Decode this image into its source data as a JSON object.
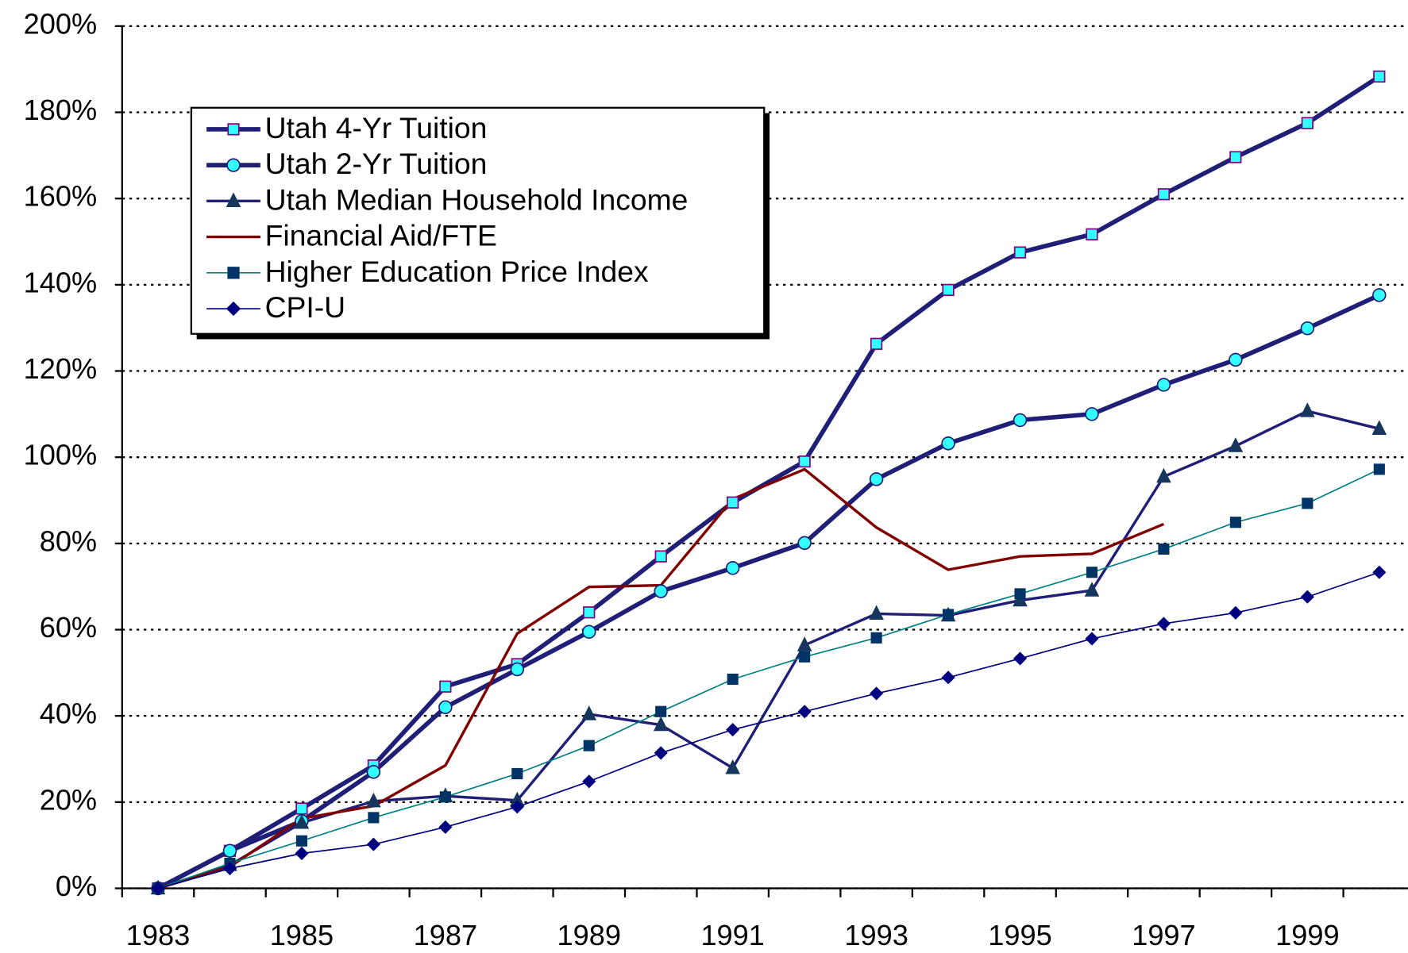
{
  "chart_data": {
    "type": "line",
    "categories": [
      "1983",
      null,
      "1985",
      null,
      "1987",
      null,
      "1989",
      null,
      "1991",
      null,
      "1993",
      null,
      "1995",
      null,
      "1997",
      null,
      "1999",
      null
    ],
    "ylim": [
      0,
      200
    ],
    "yticks": [
      {
        "value": 0,
        "label": "0%"
      },
      {
        "value": 20,
        "label": "20%"
      },
      {
        "value": 40,
        "label": "40%"
      },
      {
        "value": 60,
        "label": "60%"
      },
      {
        "value": 80,
        "label": "80%"
      },
      {
        "value": 100,
        "label": "100%"
      },
      {
        "value": 120,
        "label": "120%"
      },
      {
        "value": 140,
        "label": "140%"
      },
      {
        "value": 160,
        "label": "160%"
      },
      {
        "value": 180,
        "label": "180%"
      },
      {
        "value": 200,
        "label": "200%"
      }
    ],
    "grid": true,
    "legend": "upper left",
    "series": [
      {
        "name": "Utah 4-Yr Tuition",
        "color": "#1f1f78",
        "marker": "square",
        "marker_fill": "#33ffff",
        "marker_stroke": "#800080",
        "line_width": 5,
        "values": [
          0,
          8.7,
          18.5,
          28.5,
          46.8,
          52,
          64,
          77,
          89.5,
          99,
          126.3,
          138.8,
          147.5,
          151.7,
          161,
          169.6,
          177.5,
          188.3
        ]
      },
      {
        "name": "Utah 2-Yr Tuition",
        "color": "#1f1f78",
        "marker": "circle",
        "marker_fill": "#33ffff",
        "marker_stroke": "#1f1f78",
        "line_width": 5,
        "values": [
          0,
          8.7,
          15.6,
          27,
          42,
          50.8,
          59.5,
          68.9,
          74.3,
          80.1,
          94.9,
          103.2,
          108.6,
          110,
          116.8,
          122.6,
          129.9,
          137.6
        ]
      },
      {
        "name": "Utah Median Household Income",
        "color": "#1f1f78",
        "marker": "triangle",
        "marker_fill": "#17365d",
        "marker_stroke": "#17365d",
        "line_width": 3,
        "values": [
          0,
          5.4,
          15.2,
          20.2,
          21.4,
          20.4,
          40.4,
          37.9,
          27.9,
          56.4,
          63.7,
          63.3,
          66.8,
          69.1,
          95.5,
          102.6,
          110.7,
          106.6
        ]
      },
      {
        "name": "Financial Aid/FTE",
        "color": "#800000",
        "marker": "none",
        "line_width": 3,
        "values": [
          0,
          5,
          16.2,
          19.1,
          28.5,
          59.1,
          69.9,
          70.3,
          90.3,
          97.2,
          83.7,
          73.9,
          77,
          77.6,
          84.5,
          null,
          null,
          null
        ]
      },
      {
        "name": "Higher Education Price Index",
        "color": "#008080",
        "marker": "square",
        "marker_fill": "#003366",
        "marker_stroke": "#003366",
        "line_width": 1.5,
        "values": [
          0,
          5.8,
          11,
          16.4,
          21.2,
          26.6,
          33.1,
          41,
          48.5,
          53.7,
          58.1,
          63.5,
          68.3,
          73.3,
          78.7,
          84.9,
          89.3,
          97.2
        ]
      },
      {
        "name": "CPI-U",
        "color": "#000080",
        "marker": "diamond",
        "marker_fill": "#000080",
        "marker_stroke": "#000080",
        "line_width": 1.5,
        "values": [
          0,
          4.6,
          8.1,
          10.2,
          14.2,
          18.9,
          24.8,
          31.4,
          36.8,
          41,
          45.2,
          48.9,
          53.3,
          57.9,
          61.4,
          63.9,
          67.6,
          73.3
        ]
      }
    ]
  }
}
